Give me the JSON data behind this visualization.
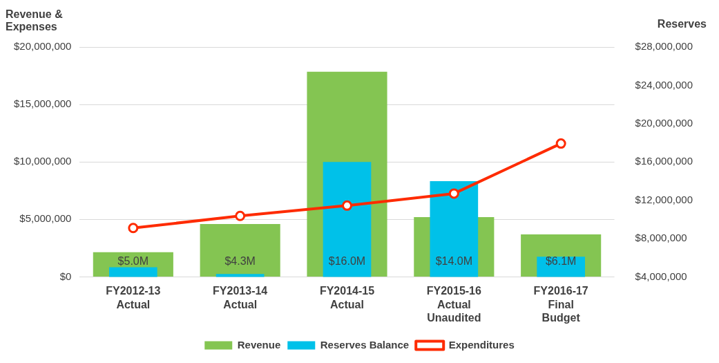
{
  "chart_data": {
    "type": "bar",
    "ylabel": "Revenue &\nExpenses",
    "y2label": "Reserves",
    "categories": [
      "FY2012-13\nActual",
      "FY2013-14\nActual",
      "FY2014-15\nActual",
      "FY2015-16\nActual\nUnaudited",
      "FY2016-17\nFinal\nBudget"
    ],
    "series": [
      {
        "name": "Revenue",
        "color": "#84c552",
        "values": [
          2150000,
          4600000,
          17850000,
          5200000,
          3700000
        ]
      },
      {
        "name": "Reserves Balance",
        "type": "bar",
        "axis": "y2",
        "color": "#00c1e9",
        "values": [
          5000000,
          4300000,
          16000000,
          14000000,
          6100000
        ],
        "value_labels": [
          "$5.0M",
          "$4.3M",
          "$16.0M",
          "$14.0M",
          "$6.1M"
        ]
      },
      {
        "name": "Expenditures",
        "type": "line",
        "color": "#fe2b00",
        "values": [
          4250000,
          5300000,
          6200000,
          7250000,
          11600000
        ]
      }
    ],
    "ylim": [
      0,
      20000000
    ],
    "yticks": [
      {
        "value": 0,
        "label": "$0"
      },
      {
        "value": 5000000,
        "label": "$5,000,000"
      },
      {
        "value": 10000000,
        "label": "$10,000,000"
      },
      {
        "value": 15000000,
        "label": "$15,000,000"
      },
      {
        "value": 20000000,
        "label": "$20,000,000"
      }
    ],
    "y2lim": [
      4000000,
      28000000
    ],
    "y2ticks": [
      {
        "value": 4000000,
        "label": "$4,000,000"
      },
      {
        "value": 8000000,
        "label": "$8,000,000"
      },
      {
        "value": 12000000,
        "label": "$12,000,000"
      },
      {
        "value": 16000000,
        "label": "$16,000,000"
      },
      {
        "value": 20000000,
        "label": "$20,000,000"
      },
      {
        "value": 24000000,
        "label": "$24,000,000"
      },
      {
        "value": 28000000,
        "label": "$28,000,000"
      }
    ],
    "grid": "y",
    "legend": "bottom",
    "marker": "circle",
    "line_style": "solid"
  }
}
